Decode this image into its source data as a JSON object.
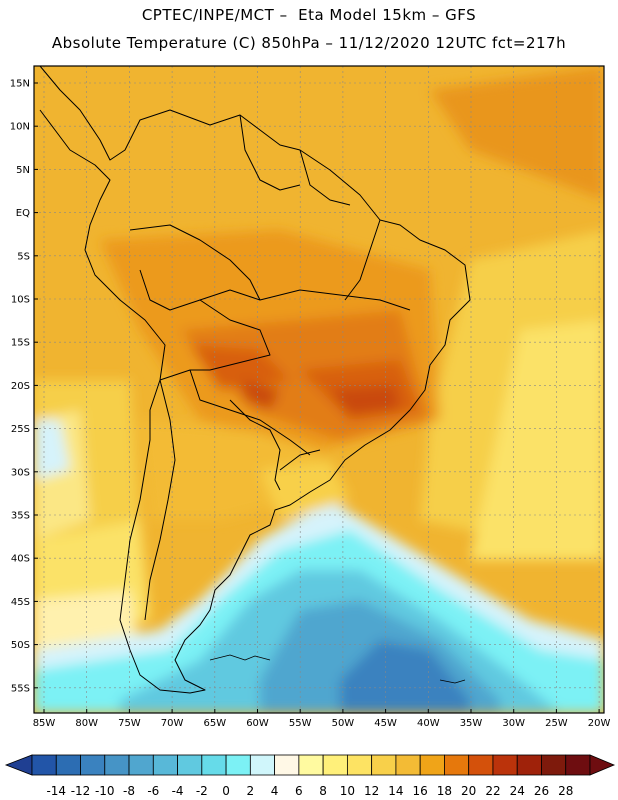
{
  "header": {
    "line1": "CPTEC/INPE/MCT –  Eta Model 15km – GFS",
    "line2": "Absolute Temperature (C) 850hPa – 11/12/2020 12UTC fct=217h"
  },
  "axes": {
    "lat_labels": [
      "15N",
      "10N",
      "5N",
      "EQ",
      "5S",
      "10S",
      "15S",
      "20S",
      "25S",
      "30S",
      "35S",
      "40S",
      "45S",
      "50S",
      "55S"
    ],
    "lon_labels": [
      "85W",
      "80W",
      "75W",
      "70W",
      "65W",
      "60W",
      "55W",
      "50W",
      "45W",
      "40W",
      "35W",
      "30W",
      "25W",
      "20W"
    ]
  },
  "colorbar": {
    "ticks": [
      "-14",
      "-12",
      "-10",
      "-8",
      "-6",
      "-4",
      "-2",
      "0",
      "2",
      "4",
      "6",
      "8",
      "10",
      "12",
      "14",
      "16",
      "18",
      "20",
      "22",
      "24",
      "26",
      "28"
    ],
    "colors": [
      "#2255a8",
      "#2c6db3",
      "#3a82bf",
      "#4694c6",
      "#50a6cf",
      "#58b8d8",
      "#60c9e0",
      "#66dbe9",
      "#7cf1f5",
      "#d0f6fb",
      "#fff8e6",
      "#fffaa0",
      "#fff07a",
      "#fde363",
      "#f8d04a",
      "#f3bb35",
      "#f0a418",
      "#e6780c",
      "#d4510b",
      "#bb330b",
      "#9f220a",
      "#7e1a0c",
      "#6e0d10"
    ],
    "under_color": "#1f3f92",
    "over_color": "#6e0d10"
  }
}
